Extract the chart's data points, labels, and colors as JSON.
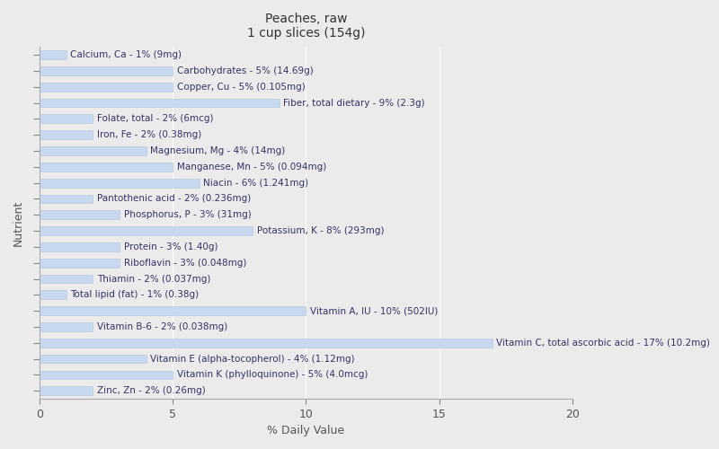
{
  "title": "Peaches, raw\n1 cup slices (154g)",
  "xlabel": "% Daily Value",
  "ylabel": "Nutrient",
  "xlim": [
    0,
    20
  ],
  "xticks": [
    0,
    5,
    10,
    15,
    20
  ],
  "background_color": "#ebebeb",
  "bar_color": "#c8d8ef",
  "bar_edge_color": "#b0c4de",
  "text_color": "#333366",
  "title_color": "#333333",
  "nutrients": [
    "Calcium, Ca - 1% (9mg)",
    "Carbohydrates - 5% (14.69g)",
    "Copper, Cu - 5% (0.105mg)",
    "Fiber, total dietary - 9% (2.3g)",
    "Folate, total - 2% (6mcg)",
    "Iron, Fe - 2% (0.38mg)",
    "Magnesium, Mg - 4% (14mg)",
    "Manganese, Mn - 5% (0.094mg)",
    "Niacin - 6% (1.241mg)",
    "Pantothenic acid - 2% (0.236mg)",
    "Phosphorus, P - 3% (31mg)",
    "Potassium, K - 8% (293mg)",
    "Protein - 3% (1.40g)",
    "Riboflavin - 3% (0.048mg)",
    "Thiamin - 2% (0.037mg)",
    "Total lipid (fat) - 1% (0.38g)",
    "Vitamin A, IU - 10% (502IU)",
    "Vitamin B-6 - 2% (0.038mg)",
    "Vitamin C, total ascorbic acid - 17% (10.2mg)",
    "Vitamin E (alpha-tocopherol) - 4% (1.12mg)",
    "Vitamin K (phylloquinone) - 5% (4.0mcg)",
    "Zinc, Zn - 2% (0.26mg)"
  ],
  "values": [
    1,
    5,
    5,
    9,
    2,
    2,
    4,
    5,
    6,
    2,
    3,
    8,
    3,
    3,
    2,
    1,
    10,
    2,
    17,
    4,
    5,
    2
  ],
  "label_fontsize": 7.5,
  "axis_label_fontsize": 9,
  "title_fontsize": 10,
  "bar_height": 0.55,
  "tick_label_color": "#555555"
}
